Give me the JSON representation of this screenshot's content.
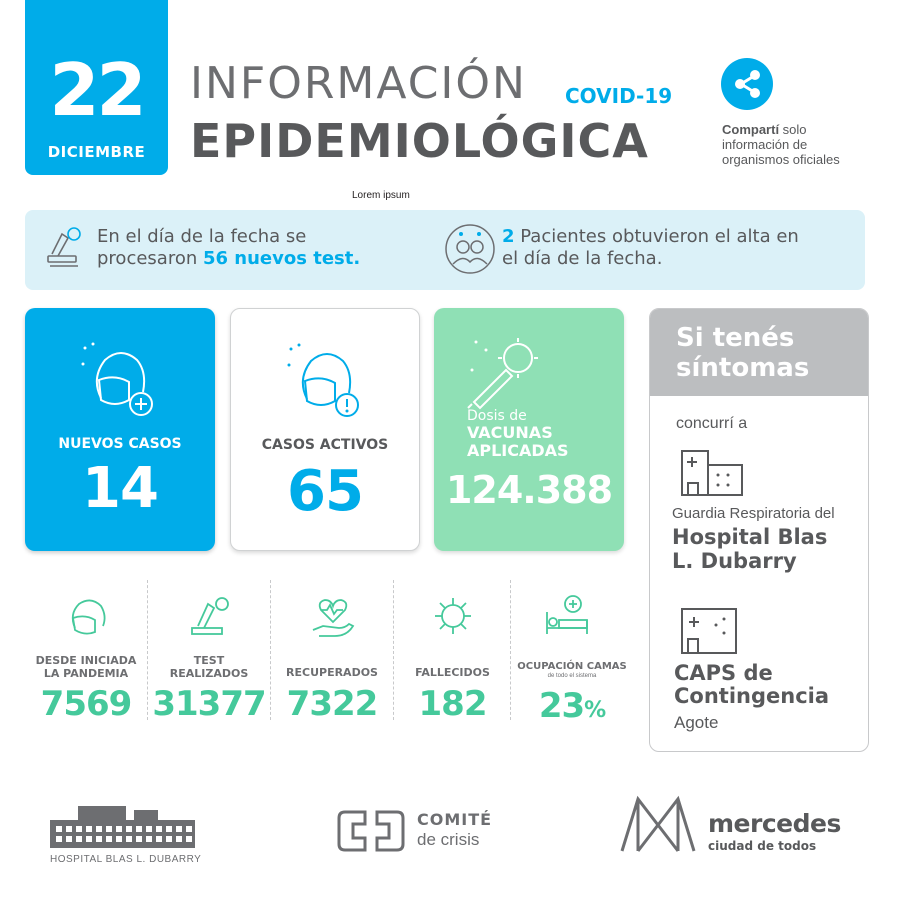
{
  "date": {
    "day": "22",
    "month": "DICIEMBRE"
  },
  "header": {
    "title_line1": "INFORMACIÓN",
    "covid": "COVID-19",
    "title_line2": "EPIDEMIOLÓGICA",
    "lorem": "Lorem ipsum"
  },
  "share": {
    "icon": "share-icon",
    "bold": "Comparti",
    "accent": "́",
    "rest1": " solo",
    "line2": "información de",
    "line3": "organismos oficiales"
  },
  "info": {
    "left_l1": "En el día de la fecha se",
    "left_l2_a": "procesaron ",
    "left_l2_b": "56 nuevos test.",
    "right_l1_a": "2",
    "right_l1_b": " Pacientes obtuvieron el alta en",
    "right_l2": "el día de la fecha."
  },
  "cards": {
    "nuevos_label": "NUEVOS CASOS",
    "nuevos_value": "14",
    "activos_label": "CASOS ACTIVOS",
    "activos_value": "65",
    "dosis_l1": "Dosis de",
    "dosis_l2": "VACUNAS",
    "dosis_l3": "APLICADAS",
    "dosis_value": "124.388"
  },
  "symptoms": {
    "title_l1": "Si tenés",
    "title_l2": "síntomas",
    "concurri": "concurrí a",
    "guardia": "Guardia Respiratoria del",
    "hospital_l1": "Hospital Blas",
    "hospital_l2": "L. Dubarry",
    "caps_l1": "CAPS de",
    "caps_l2": "Contingencia",
    "caps_l3": "Agote"
  },
  "stats": [
    {
      "label_l1": "DESDE INICIADA",
      "label_l2": "LA PANDEMIA",
      "value": "7569"
    },
    {
      "label_l1": "TEST",
      "label_l2": "REALIZADOS",
      "value": "31377"
    },
    {
      "label_l1": "RECUPERADOS",
      "label_l2": "",
      "value": "7322"
    },
    {
      "label_l1": "FALLECIDOS",
      "label_l2": "",
      "value": "182"
    },
    {
      "label_l1": "OCUPACIÓN CAMAS",
      "label_l2": "de todo el sistema",
      "value": "23",
      "unit": "%"
    }
  ],
  "footer": {
    "hospital": "HOSPITAL BLAS L. DUBARRY",
    "comite_l1": "COMITÉ",
    "comite_l2": "de crisis",
    "mercedes_l1": "mercedes",
    "mercedes_l2": "ciudad de todos"
  },
  "colors": {
    "blue": "#00ace9",
    "green": "#45c99b",
    "mint": "#8fe0b5",
    "gray": "#58595b",
    "light": "#dbf1f8"
  }
}
